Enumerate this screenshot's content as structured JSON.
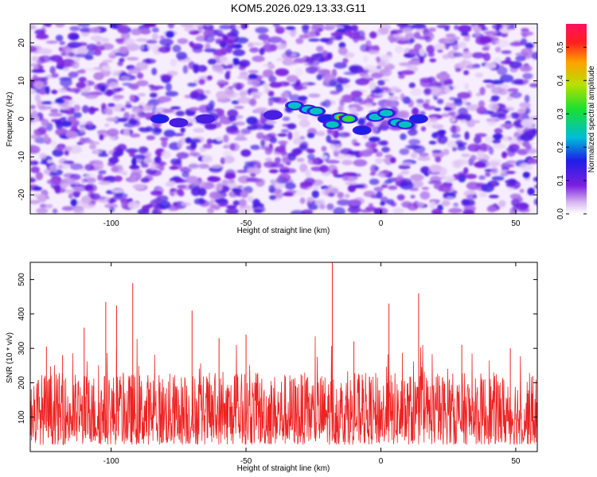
{
  "title": "KOM5.2026.029.13.33.G11",
  "chart_data": [
    {
      "type": "heatmap",
      "xlabel": "Height of straight line (km)",
      "ylabel": "Frequency (Hz)",
      "xlim": [
        -130,
        58
      ],
      "ylim": [
        -25,
        25
      ],
      "xticks": [
        -100,
        -50,
        0,
        50
      ],
      "yticks": [
        -20,
        -10,
        0,
        10,
        20
      ],
      "xtick_labels": [
        "-100",
        "-50",
        "0",
        "50"
      ],
      "ytick_labels": [
        "-20",
        "-10",
        "0",
        "10",
        "20"
      ],
      "colorbar": {
        "label": "Normalized spectral amplitude",
        "range": [
          0,
          0.57
        ],
        "ticks": [
          0.0,
          0.1,
          0.2,
          0.3,
          0.4,
          0.5
        ],
        "tick_labels": [
          "0.0",
          "0.1",
          "0.2",
          "0.3",
          "0.4",
          "0.5"
        ]
      },
      "hotspots": [
        {
          "x": -82,
          "y": 0,
          "v": 0.18
        },
        {
          "x": -75,
          "y": -1,
          "v": 0.15
        },
        {
          "x": -65,
          "y": 0,
          "v": 0.14
        },
        {
          "x": -40,
          "y": 1,
          "v": 0.12
        },
        {
          "x": -32,
          "y": 3.5,
          "v": 0.3
        },
        {
          "x": -27,
          "y": 2.5,
          "v": 0.32
        },
        {
          "x": -24,
          "y": 2,
          "v": 0.28
        },
        {
          "x": -20,
          "y": 0,
          "v": 0.22
        },
        {
          "x": -18,
          "y": -1.5,
          "v": 0.26
        },
        {
          "x": -15,
          "y": 0.5,
          "v": 0.55
        },
        {
          "x": -12,
          "y": 0,
          "v": 0.34
        },
        {
          "x": -7,
          "y": -3,
          "v": 0.2
        },
        {
          "x": -2,
          "y": 0.5,
          "v": 0.26
        },
        {
          "x": 2,
          "y": 1.5,
          "v": 0.33
        },
        {
          "x": 6,
          "y": -1,
          "v": 0.28
        },
        {
          "x": 9,
          "y": -1.5,
          "v": 0.25
        },
        {
          "x": 14,
          "y": 0,
          "v": 0.16
        }
      ]
    },
    {
      "type": "line",
      "xlabel": "Height of straight line (km)",
      "ylabel": "SNR (10 * v/v)",
      "xlim": [
        -130,
        58
      ],
      "ylim": [
        0,
        550
      ],
      "xticks": [
        -100,
        -50,
        0,
        50
      ],
      "yticks": [
        100,
        200,
        300,
        400,
        500
      ],
      "xtick_labels": [
        "-100",
        "-50",
        "0",
        "50"
      ],
      "ytick_labels": [
        "100",
        "200",
        "300",
        "400",
        "500"
      ],
      "series_color": "#ee2222",
      "series_peaks": [
        {
          "x": -124,
          "y": 305
        },
        {
          "x": -118,
          "y": 280
        },
        {
          "x": -110,
          "y": 360
        },
        {
          "x": -102,
          "y": 435
        },
        {
          "x": -98,
          "y": 425
        },
        {
          "x": -92,
          "y": 490
        },
        {
          "x": -70,
          "y": 410
        },
        {
          "x": -60,
          "y": 330
        },
        {
          "x": -50,
          "y": 340
        },
        {
          "x": -18,
          "y": 550
        },
        {
          "x": -10,
          "y": 320
        },
        {
          "x": 3,
          "y": 430
        },
        {
          "x": 14,
          "y": 460
        },
        {
          "x": 30,
          "y": 310
        },
        {
          "x": 48,
          "y": 300
        }
      ],
      "baseline_range": [
        20,
        230
      ]
    }
  ]
}
